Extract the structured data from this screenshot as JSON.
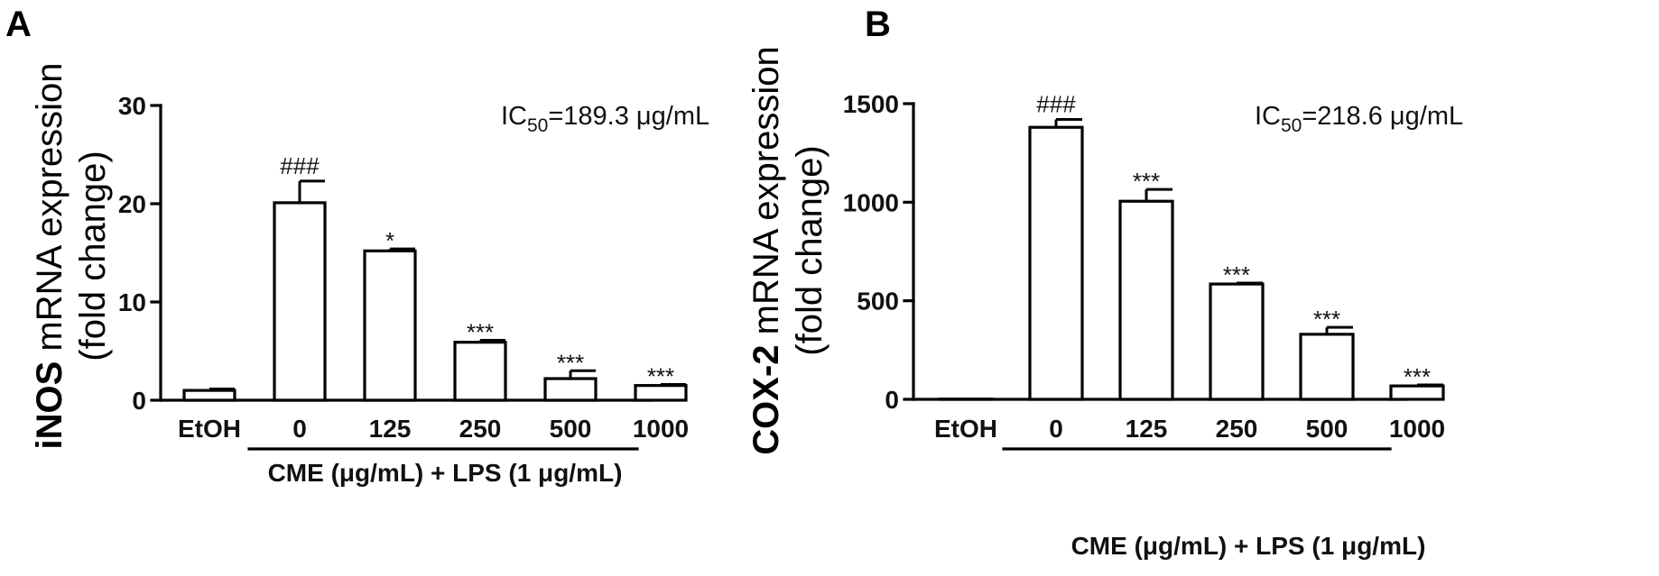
{
  "chart_data": [
    {
      "panel_label": "A",
      "type": "bar",
      "ylabel_bold": "iNOS",
      "ylabel_rest": " mRNA expression",
      "ylabel_line2": "(fold change)",
      "ic50_prefix": "IC",
      "ic50_sub": "50",
      "ic50_value": "=189.3 μg/mL",
      "categories": [
        "EtOH",
        "0",
        "125",
        "250",
        "500",
        "1000"
      ],
      "values": [
        1.0,
        20.1,
        15.2,
        5.9,
        2.2,
        1.5
      ],
      "errors": [
        0.15,
        2.2,
        0.2,
        0.2,
        0.8,
        0.1
      ],
      "significance": [
        "",
        "###",
        "*",
        "***",
        "***",
        "***"
      ],
      "ylim": [
        0,
        30
      ],
      "yticks": [
        0,
        10,
        20,
        30
      ],
      "group_label": "CME (μg/mL) + LPS (1 μg/mL)"
    },
    {
      "panel_label": "B",
      "type": "bar",
      "ylabel_bold": "COX-2",
      "ylabel_rest": " mRNA expression",
      "ylabel_line2": "(fold change)",
      "ic50_prefix": "IC",
      "ic50_sub": "50",
      "ic50_value": "=218.6 μg/mL",
      "categories": [
        "EtOH",
        "0",
        "125",
        "250",
        "500",
        "1000"
      ],
      "values": [
        1,
        1380,
        1005,
        585,
        330,
        68
      ],
      "errors": [
        0,
        40,
        60,
        5,
        35,
        5
      ],
      "significance": [
        "",
        "###",
        "***",
        "***",
        "***",
        "***"
      ],
      "ylim": [
        0,
        1500
      ],
      "yticks": [
        0,
        500,
        1000,
        1500
      ],
      "group_label": "CME (μg/mL) + LPS (1 μg/mL)"
    }
  ]
}
